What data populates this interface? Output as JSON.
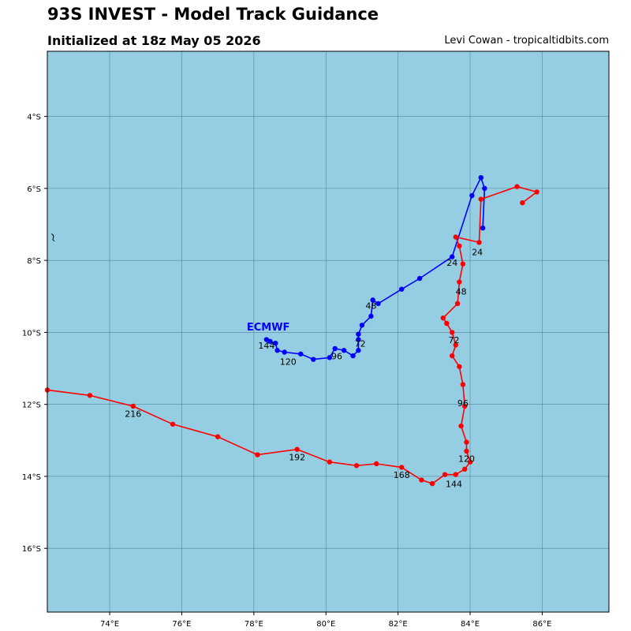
{
  "header": {
    "title": "93S INVEST - Model Track Guidance",
    "subtitle": "Initialized at 18z May 05 2026",
    "credit": "Levi Cowan - tropicaltidbits.com"
  },
  "map": {
    "extent": {
      "lon": [
        72.27,
        87.85
      ],
      "lat_top": -2.19,
      "lat_bottom": -17.77
    },
    "ocean_color": "#95cee3",
    "grid_color": "#3c6478",
    "lon_ticks": [
      74,
      76,
      78,
      80,
      82,
      84,
      86
    ],
    "lon_tick_labels": [
      "74°E",
      "76°E",
      "78°E",
      "80°E",
      "82°E",
      "84°E",
      "86°E"
    ],
    "lat_ticks": [
      -4,
      -6,
      -8,
      -10,
      -12,
      -14,
      -16
    ],
    "lat_tick_labels": [
      "4°S",
      "6°S",
      "8°S",
      "10°S",
      "12°S",
      "14°S",
      "16°S"
    ],
    "land_symbol": {
      "label": "land-speck",
      "lon": 72.45,
      "lat": -7.35
    }
  },
  "tracks": [
    {
      "name": "ECMWF",
      "color": "#0000ff",
      "label": {
        "text": "ECMWF",
        "lon": 78.4,
        "lat": -9.95
      },
      "points": [
        [
          84.35,
          -7.1
        ],
        [
          84.4,
          -6.0
        ],
        [
          84.3,
          -5.7
        ],
        [
          84.05,
          -6.2
        ],
        [
          83.5,
          -7.9
        ],
        [
          82.6,
          -8.5
        ],
        [
          82.1,
          -8.8
        ],
        [
          81.45,
          -9.2
        ],
        [
          81.3,
          -9.1
        ],
        [
          81.25,
          -9.55
        ],
        [
          81.0,
          -9.8
        ],
        [
          80.9,
          -10.05
        ],
        [
          80.9,
          -10.2
        ],
        [
          80.9,
          -10.5
        ],
        [
          80.75,
          -10.65
        ],
        [
          80.5,
          -10.5
        ],
        [
          80.25,
          -10.45
        ],
        [
          80.1,
          -10.7
        ],
        [
          79.65,
          -10.75
        ],
        [
          79.3,
          -10.6
        ],
        [
          78.85,
          -10.55
        ],
        [
          78.65,
          -10.5
        ],
        [
          78.6,
          -10.3
        ],
        [
          78.45,
          -10.25
        ],
        [
          78.35,
          -10.2
        ]
      ],
      "hour_labels": [
        {
          "text": "24",
          "lon": 83.5,
          "lat": -8.15
        },
        {
          "text": "48",
          "lon": 81.25,
          "lat": -9.35
        },
        {
          "text": "72",
          "lon": 80.95,
          "lat": -10.4
        },
        {
          "text": "96",
          "lon": 80.3,
          "lat": -10.75
        },
        {
          "text": "120",
          "lon": 78.95,
          "lat": -10.9
        },
        {
          "text": "144",
          "lon": 78.35,
          "lat": -10.45
        }
      ]
    },
    {
      "name": "",
      "color": "#ff0000",
      "points": [
        [
          85.45,
          -6.4
        ],
        [
          85.85,
          -6.1
        ],
        [
          85.3,
          -5.95
        ],
        [
          84.3,
          -6.3
        ],
        [
          84.25,
          -7.5
        ],
        [
          83.6,
          -7.35
        ],
        [
          83.7,
          -7.6
        ],
        [
          83.8,
          -8.1
        ],
        [
          83.7,
          -8.6
        ],
        [
          83.65,
          -9.2
        ],
        [
          83.25,
          -9.6
        ],
        [
          83.35,
          -9.75
        ],
        [
          83.5,
          -10.0
        ],
        [
          83.6,
          -10.35
        ],
        [
          83.5,
          -10.65
        ],
        [
          83.7,
          -10.95
        ],
        [
          83.8,
          -11.45
        ],
        [
          83.85,
          -12.05
        ],
        [
          83.75,
          -12.6
        ],
        [
          83.9,
          -13.05
        ],
        [
          83.9,
          -13.3
        ],
        [
          84.0,
          -13.6
        ],
        [
          83.85,
          -13.8
        ],
        [
          83.6,
          -13.95
        ],
        [
          83.3,
          -13.95
        ],
        [
          82.95,
          -14.2
        ],
        [
          82.65,
          -14.1
        ],
        [
          82.1,
          -13.75
        ],
        [
          81.4,
          -13.65
        ],
        [
          80.85,
          -13.7
        ],
        [
          80.1,
          -13.6
        ],
        [
          79.2,
          -13.25
        ],
        [
          78.1,
          -13.4
        ],
        [
          77.0,
          -12.9
        ],
        [
          75.75,
          -12.55
        ],
        [
          74.65,
          -12.05
        ],
        [
          73.45,
          -11.75
        ],
        [
          72.27,
          -11.6
        ]
      ],
      "hour_labels": [
        {
          "text": "24",
          "lon": 84.2,
          "lat": -7.85
        },
        {
          "text": "48",
          "lon": 83.75,
          "lat": -8.95
        },
        {
          "text": "72",
          "lon": 83.55,
          "lat": -10.3
        },
        {
          "text": "96",
          "lon": 83.8,
          "lat": -12.05
        },
        {
          "text": "120",
          "lon": 83.9,
          "lat": -13.6
        },
        {
          "text": "144",
          "lon": 83.55,
          "lat": -14.3
        },
        {
          "text": "168",
          "lon": 82.1,
          "lat": -14.05
        },
        {
          "text": "192",
          "lon": 79.2,
          "lat": -13.55
        },
        {
          "text": "216",
          "lon": 74.65,
          "lat": -12.35
        }
      ]
    }
  ]
}
